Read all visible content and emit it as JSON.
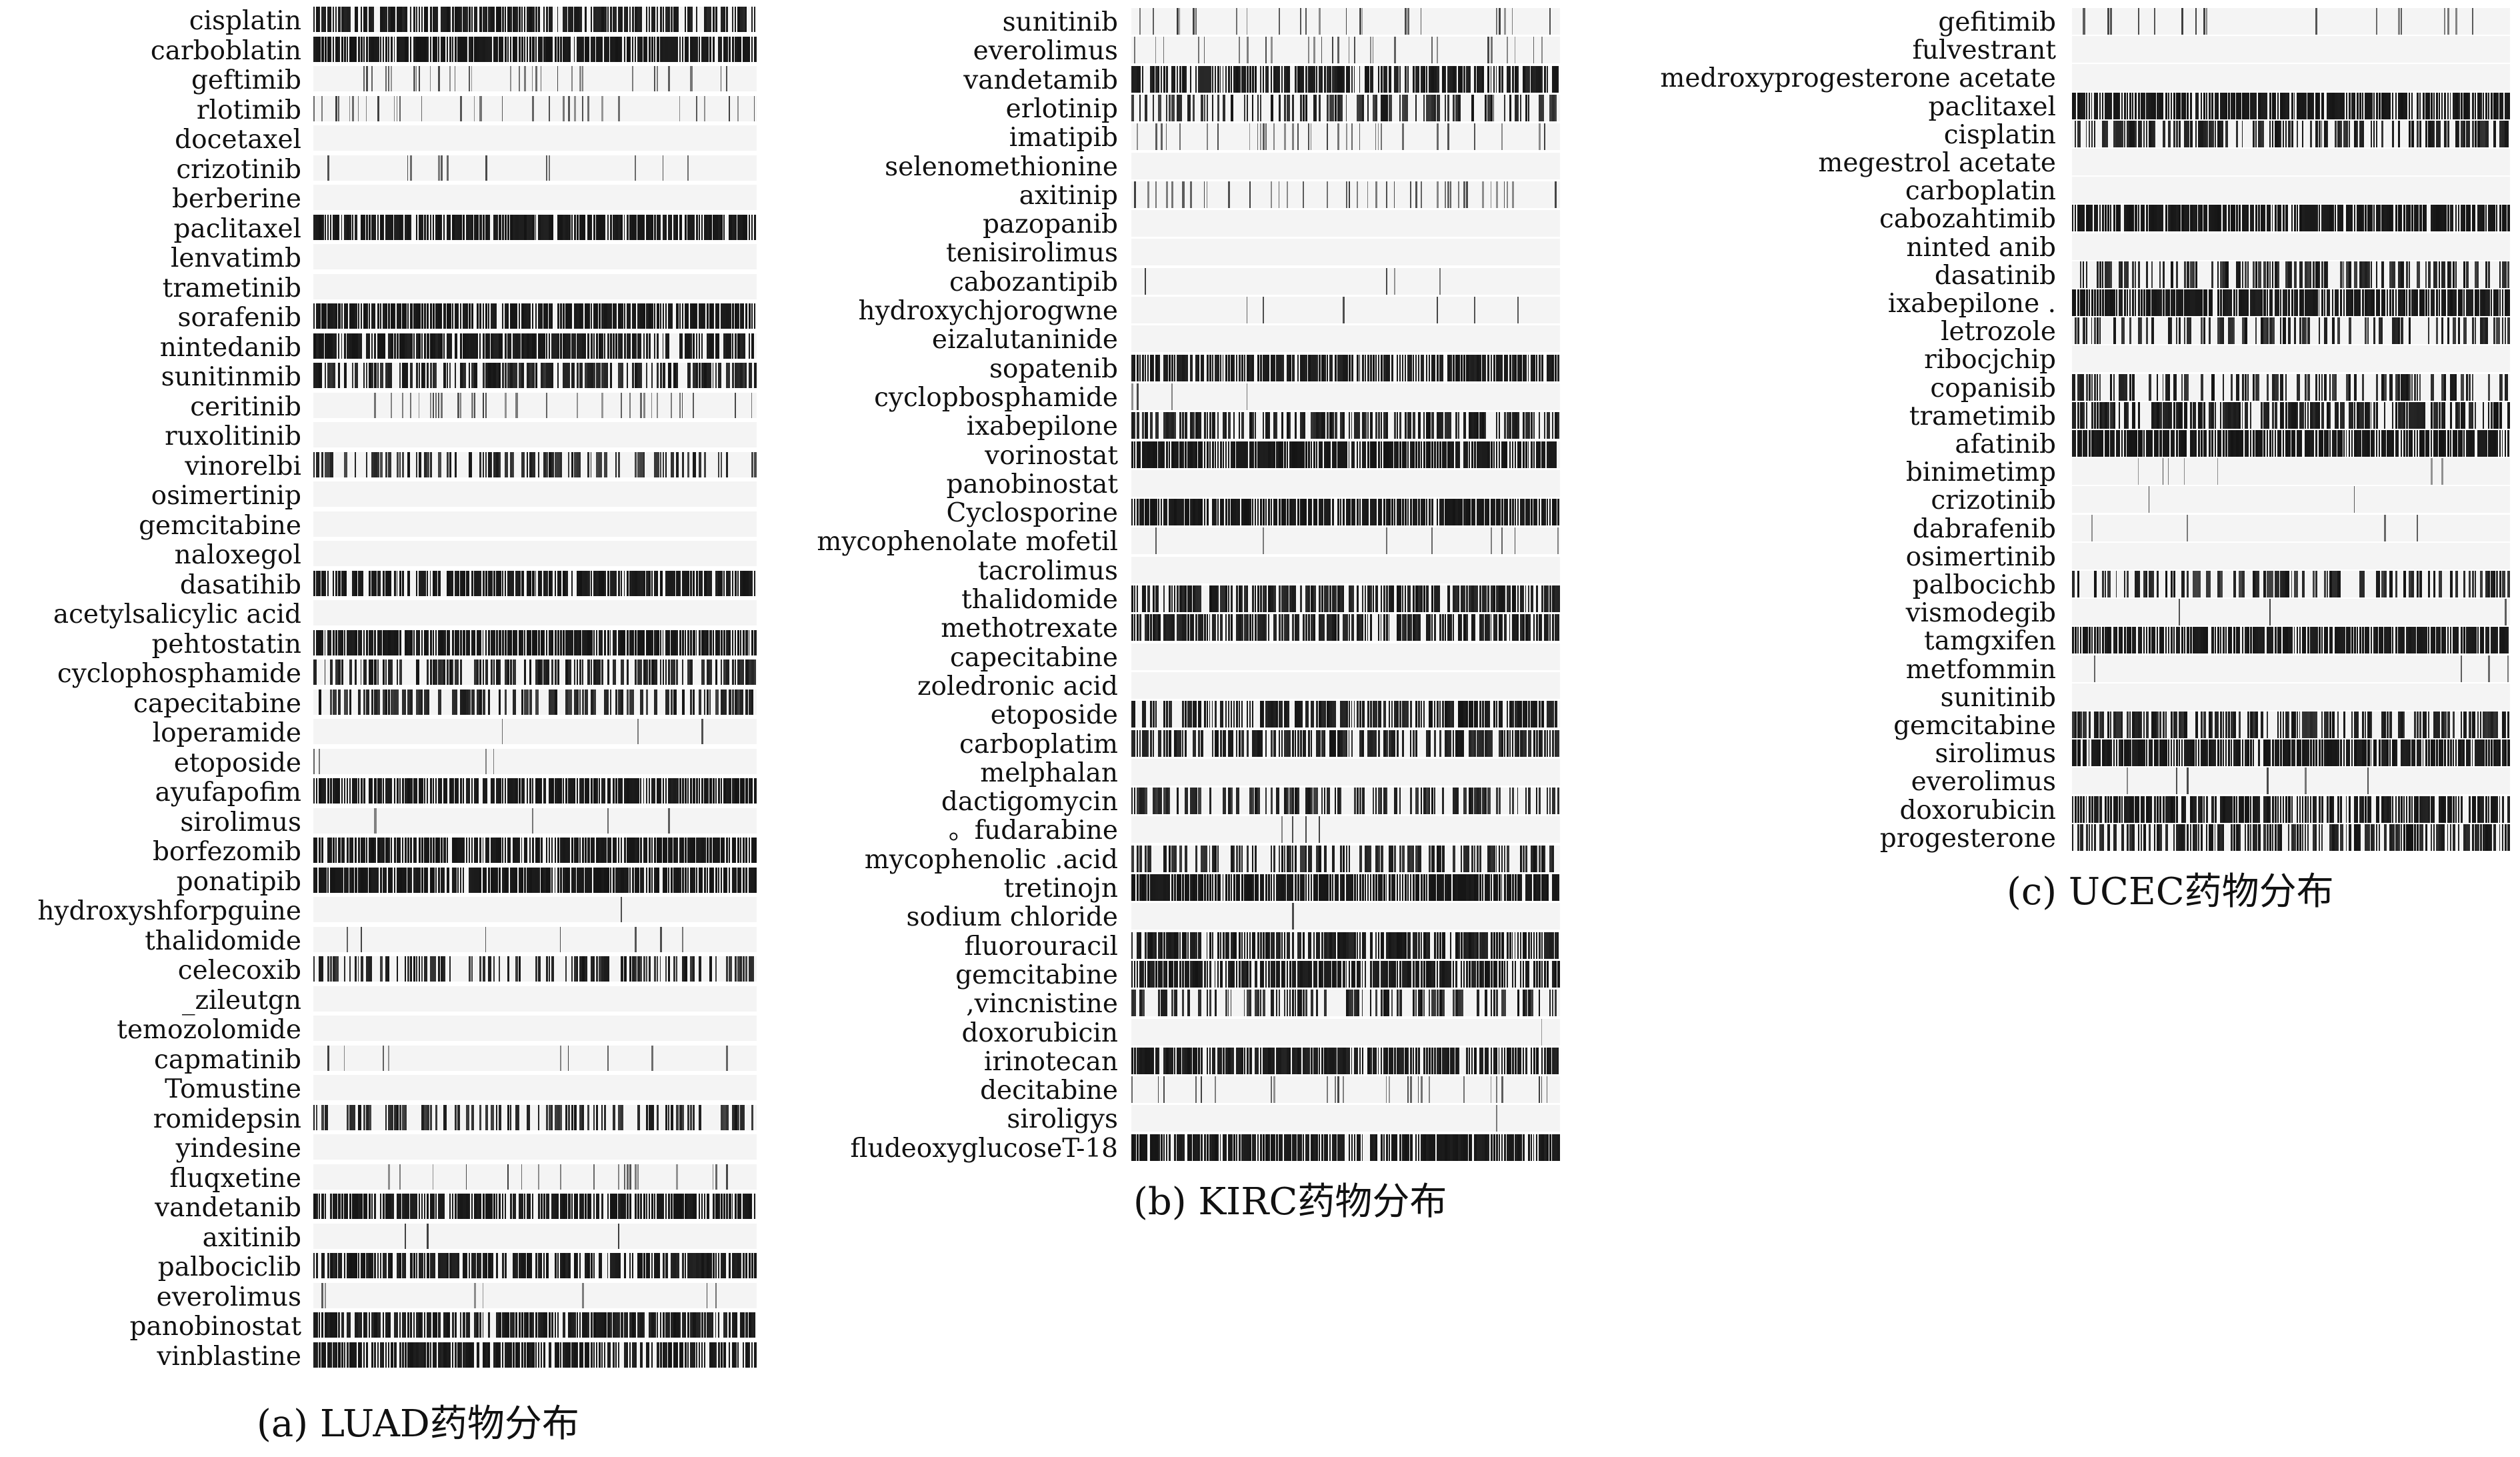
{
  "chart_data": [
    {
      "type": "heatmap",
      "caption": "(a) LUAD药物分布",
      "rows": [
        {
          "label": "cisplatin",
          "density": 0.88
        },
        {
          "label": "carboblatin",
          "density": 0.97
        },
        {
          "label": "geftimib",
          "density": 0.32
        },
        {
          "label": "rlotimib",
          "density": 0.28
        },
        {
          "label": "docetaxel",
          "density": 0.0
        },
        {
          "label": "crizotinib",
          "density": 0.12
        },
        {
          "label": "berberine",
          "density": 0.0
        },
        {
          "label": "paclitaxel",
          "density": 0.95
        },
        {
          "label": "lenvatimb",
          "density": 0.0
        },
        {
          "label": "trametinib",
          "density": 0.0
        },
        {
          "label": "sorafenib",
          "density": 0.97
        },
        {
          "label": "nintedanib",
          "density": 0.92
        },
        {
          "label": "sunitinmib",
          "density": 0.72
        },
        {
          "label": "ceritinib",
          "density": 0.45
        },
        {
          "label": "ruxolitinib",
          "density": 0.0
        },
        {
          "label": "vinorelbi",
          "density": 0.5
        },
        {
          "label": "osimertinip",
          "density": 0.0
        },
        {
          "label": "gemcitabine",
          "density": 0.0
        },
        {
          "label": "naloxegol",
          "density": 0.0
        },
        {
          "label": "dasatihib",
          "density": 0.93
        },
        {
          "label": "acetylsalicylic acid",
          "density": 0.0
        },
        {
          "label": "pehtostatin",
          "density": 0.97
        },
        {
          "label": "cyclophosphamide",
          "density": 0.72
        },
        {
          "label": "capecitabine",
          "density": 0.55
        },
        {
          "label": "loperamide",
          "density": 0.04
        },
        {
          "label": "etoposide",
          "density": 0.1
        },
        {
          "label": "ayufapofim",
          "density": 0.96
        },
        {
          "label": "sirolimus",
          "density": 0.03
        },
        {
          "label": "borfezomib",
          "density": 0.98
        },
        {
          "label": "ponatipib",
          "density": 0.98
        },
        {
          "label": "hydroxyshforpguine",
          "density": 0.02
        },
        {
          "label": "thalidomide",
          "density": 0.06
        },
        {
          "label": "celecoxib",
          "density": 0.6
        },
        {
          "label": "_zileutgn",
          "density": 0.0
        },
        {
          "label": "temozolomide",
          "density": 0.0
        },
        {
          "label": "capmatinib",
          "density": 0.12
        },
        {
          "label": "Tomustine",
          "density": 0.0
        },
        {
          "label": "romidepsin",
          "density": 0.55
        },
        {
          "label": "yindesine",
          "density": 0.0
        },
        {
          "label": "fluqxetine",
          "density": 0.25
        },
        {
          "label": "vandetanib",
          "density": 0.95
        },
        {
          "label": "axitinib",
          "density": 0.03
        },
        {
          "label": "palbociclib",
          "density": 0.9
        },
        {
          "label": "everolimus",
          "density": 0.1
        },
        {
          "label": "panobinostat",
          "density": 0.88
        },
        {
          "label": "vinblastine",
          "density": 0.92
        }
      ]
    },
    {
      "type": "heatmap",
      "caption": "(b) KIRC药物分布",
      "rows": [
        {
          "label": "sunitinib",
          "density": 0.2
        },
        {
          "label": "everolimus",
          "density": 0.25
        },
        {
          "label": "vandetamib",
          "density": 0.85
        },
        {
          "label": "erlotinip",
          "density": 0.55
        },
        {
          "label": "imatipib",
          "density": 0.45
        },
        {
          "label": "selenomethionine",
          "density": 0.0
        },
        {
          "label": "axitinip",
          "density": 0.4
        },
        {
          "label": "pazopanib",
          "density": 0.0
        },
        {
          "label": "tenisirolimus",
          "density": 0.0
        },
        {
          "label": "cabozantipib",
          "density": 0.02
        },
        {
          "label": "hydroxychjorogwne",
          "density": 0.06
        },
        {
          "label": "eizalutaninide",
          "density": 0.0
        },
        {
          "label": "sopatenib",
          "density": 0.9
        },
        {
          "label": "cyclopbosphamide",
          "density": 0.03
        },
        {
          "label": "ixabepilone",
          "density": 0.72
        },
        {
          "label": "vorinostat",
          "density": 0.98
        },
        {
          "label": "panobinostat",
          "density": 0.0
        },
        {
          "label": "Cyclosporine",
          "density": 0.98
        },
        {
          "label": "mycophenolate mofetil",
          "density": 0.05
        },
        {
          "label": "tacrolimus",
          "density": 0.0
        },
        {
          "label": "thalidomide",
          "density": 0.8
        },
        {
          "label": "methotrexate",
          "density": 0.82
        },
        {
          "label": "capecitabine",
          "density": 0.0
        },
        {
          "label": "zoledronic acid",
          "density": 0.0
        },
        {
          "label": "etoposide",
          "density": 0.82
        },
        {
          "label": "carboplatim",
          "density": 0.75
        },
        {
          "label": "melphalan",
          "density": 0.0
        },
        {
          "label": "dactigomycin",
          "density": 0.6
        },
        {
          "label": "。fudarabine",
          "density": 0.03
        },
        {
          "label": "mycophenolic .acid",
          "density": 0.65
        },
        {
          "label": "tretinojn",
          "density": 0.99
        },
        {
          "label": "sodium chloride",
          "density": 0.02
        },
        {
          "label": "fluorouracil",
          "density": 0.85
        },
        {
          "label": "gemcitabine",
          "density": 0.92
        },
        {
          "label": ",vincnistine",
          "density": 0.55
        },
        {
          "label": "doxorubicin",
          "density": 0.03
        },
        {
          "label": "irinotecan",
          "density": 0.9
        },
        {
          "label": "decitabine",
          "density": 0.3
        },
        {
          "label": "siroligys",
          "density": 0.02
        },
        {
          "label": "fludeoxyglucoseT-18",
          "density": 0.95
        }
      ]
    },
    {
      "type": "heatmap",
      "caption": "(c) UCEC药物分布",
      "rows": [
        {
          "label": "gefitimib",
          "density": 0.12
        },
        {
          "label": "fulvestrant",
          "density": 0.0
        },
        {
          "label": "medroxyprogesterone acetate",
          "density": 0.0
        },
        {
          "label": "paclitaxel",
          "density": 0.96
        },
        {
          "label": "cisplatin",
          "density": 0.72
        },
        {
          "label": "megestrol acetate",
          "density": 0.0
        },
        {
          "label": "carboplatin",
          "density": 0.0
        },
        {
          "label": "cabozahtimib",
          "density": 0.98
        },
        {
          "label": "ninted anib",
          "density": 0.0
        },
        {
          "label": "dasatinib",
          "density": 0.6
        },
        {
          "label": "ixabepilone .",
          "density": 0.95
        },
        {
          "label": "letrozole",
          "density": 0.55
        },
        {
          "label": "ribocjchip",
          "density": 0.0
        },
        {
          "label": "copanisib",
          "density": 0.55
        },
        {
          "label": "trametimib",
          "density": 0.8
        },
        {
          "label": "afatinib",
          "density": 0.98
        },
        {
          "label": "binimetimp",
          "density": 0.05
        },
        {
          "label": "crizotinib",
          "density": 0.02
        },
        {
          "label": "dabrafenib",
          "density": 0.04
        },
        {
          "label": "osimertinib",
          "density": 0.0
        },
        {
          "label": "palbocichb",
          "density": 0.55
        },
        {
          "label": "vismodegib",
          "density": 0.02
        },
        {
          "label": "tamgxifen",
          "density": 0.96
        },
        {
          "label": "metfommin",
          "density": 0.03
        },
        {
          "label": "sunitinib",
          "density": 0.0
        },
        {
          "label": "gemcitabine",
          "density": 0.7
        },
        {
          "label": "sirolimus",
          "density": 0.95
        },
        {
          "label": "everolimus",
          "density": 0.05
        },
        {
          "label": "doxorubicin",
          "density": 0.92
        },
        {
          "label": "progesterone",
          "density": 0.75
        }
      ]
    }
  ]
}
